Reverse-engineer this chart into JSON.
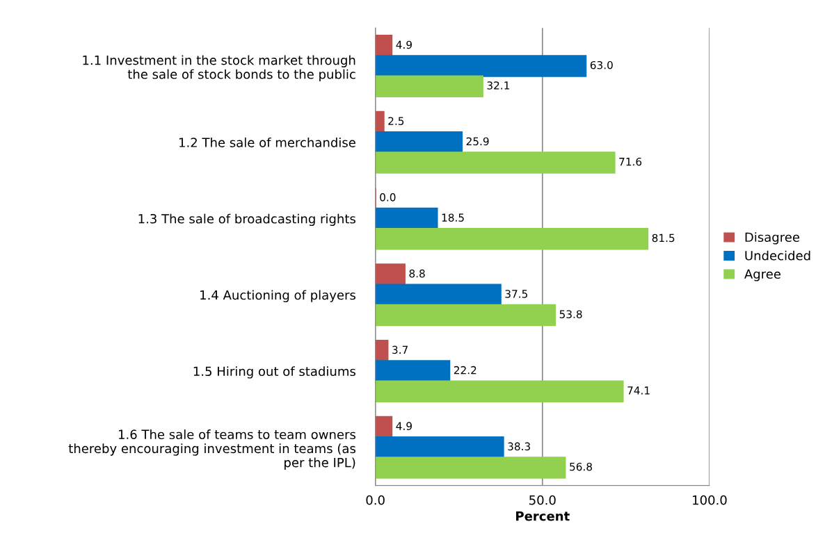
{
  "chart_data": {
    "type": "bar",
    "orientation": "horizontal",
    "xlabel": "Percent",
    "categories": [
      "1.1 Investment in the stock market through\nthe sale of stock bonds to the public",
      "1.2 The sale of merchandise",
      "1.3 The sale of broadcasting rights",
      "1.4 Auctioning of players",
      "1.5 Hiring out of stadiums",
      "1.6 The sale of teams to team owners\nthereby encouraging investment in teams (as\nper the IPL)"
    ],
    "series": [
      {
        "name": "Disagree",
        "color": "#c0504d",
        "values": [
          4.9,
          2.5,
          0.0,
          8.8,
          3.7,
          4.9
        ],
        "value_labels": [
          "4.9",
          "2.5",
          "0.0",
          "8.8",
          "3.7",
          "4.9"
        ]
      },
      {
        "name": "Undecided",
        "color": "#0070c0",
        "values": [
          63.0,
          25.9,
          18.5,
          37.5,
          22.2,
          38.3
        ],
        "value_labels": [
          "63.0",
          "25.9",
          "18.5",
          "37.5",
          "22.2",
          "38.3"
        ]
      },
      {
        "name": "Agree",
        "color": "#92d050",
        "values": [
          32.1,
          71.6,
          81.5,
          53.8,
          74.1,
          56.8
        ],
        "value_labels": [
          "32.1",
          "71.6",
          "81.5",
          "53.8",
          "74.1",
          "56.8"
        ]
      }
    ],
    "xlim": [
      0,
      100
    ],
    "xticks": [
      {
        "value": 0,
        "label": "0.0"
      },
      {
        "value": 50,
        "label": "50.0"
      },
      {
        "value": 100,
        "label": "100.0"
      }
    ],
    "grid": "x",
    "legend": "right"
  }
}
